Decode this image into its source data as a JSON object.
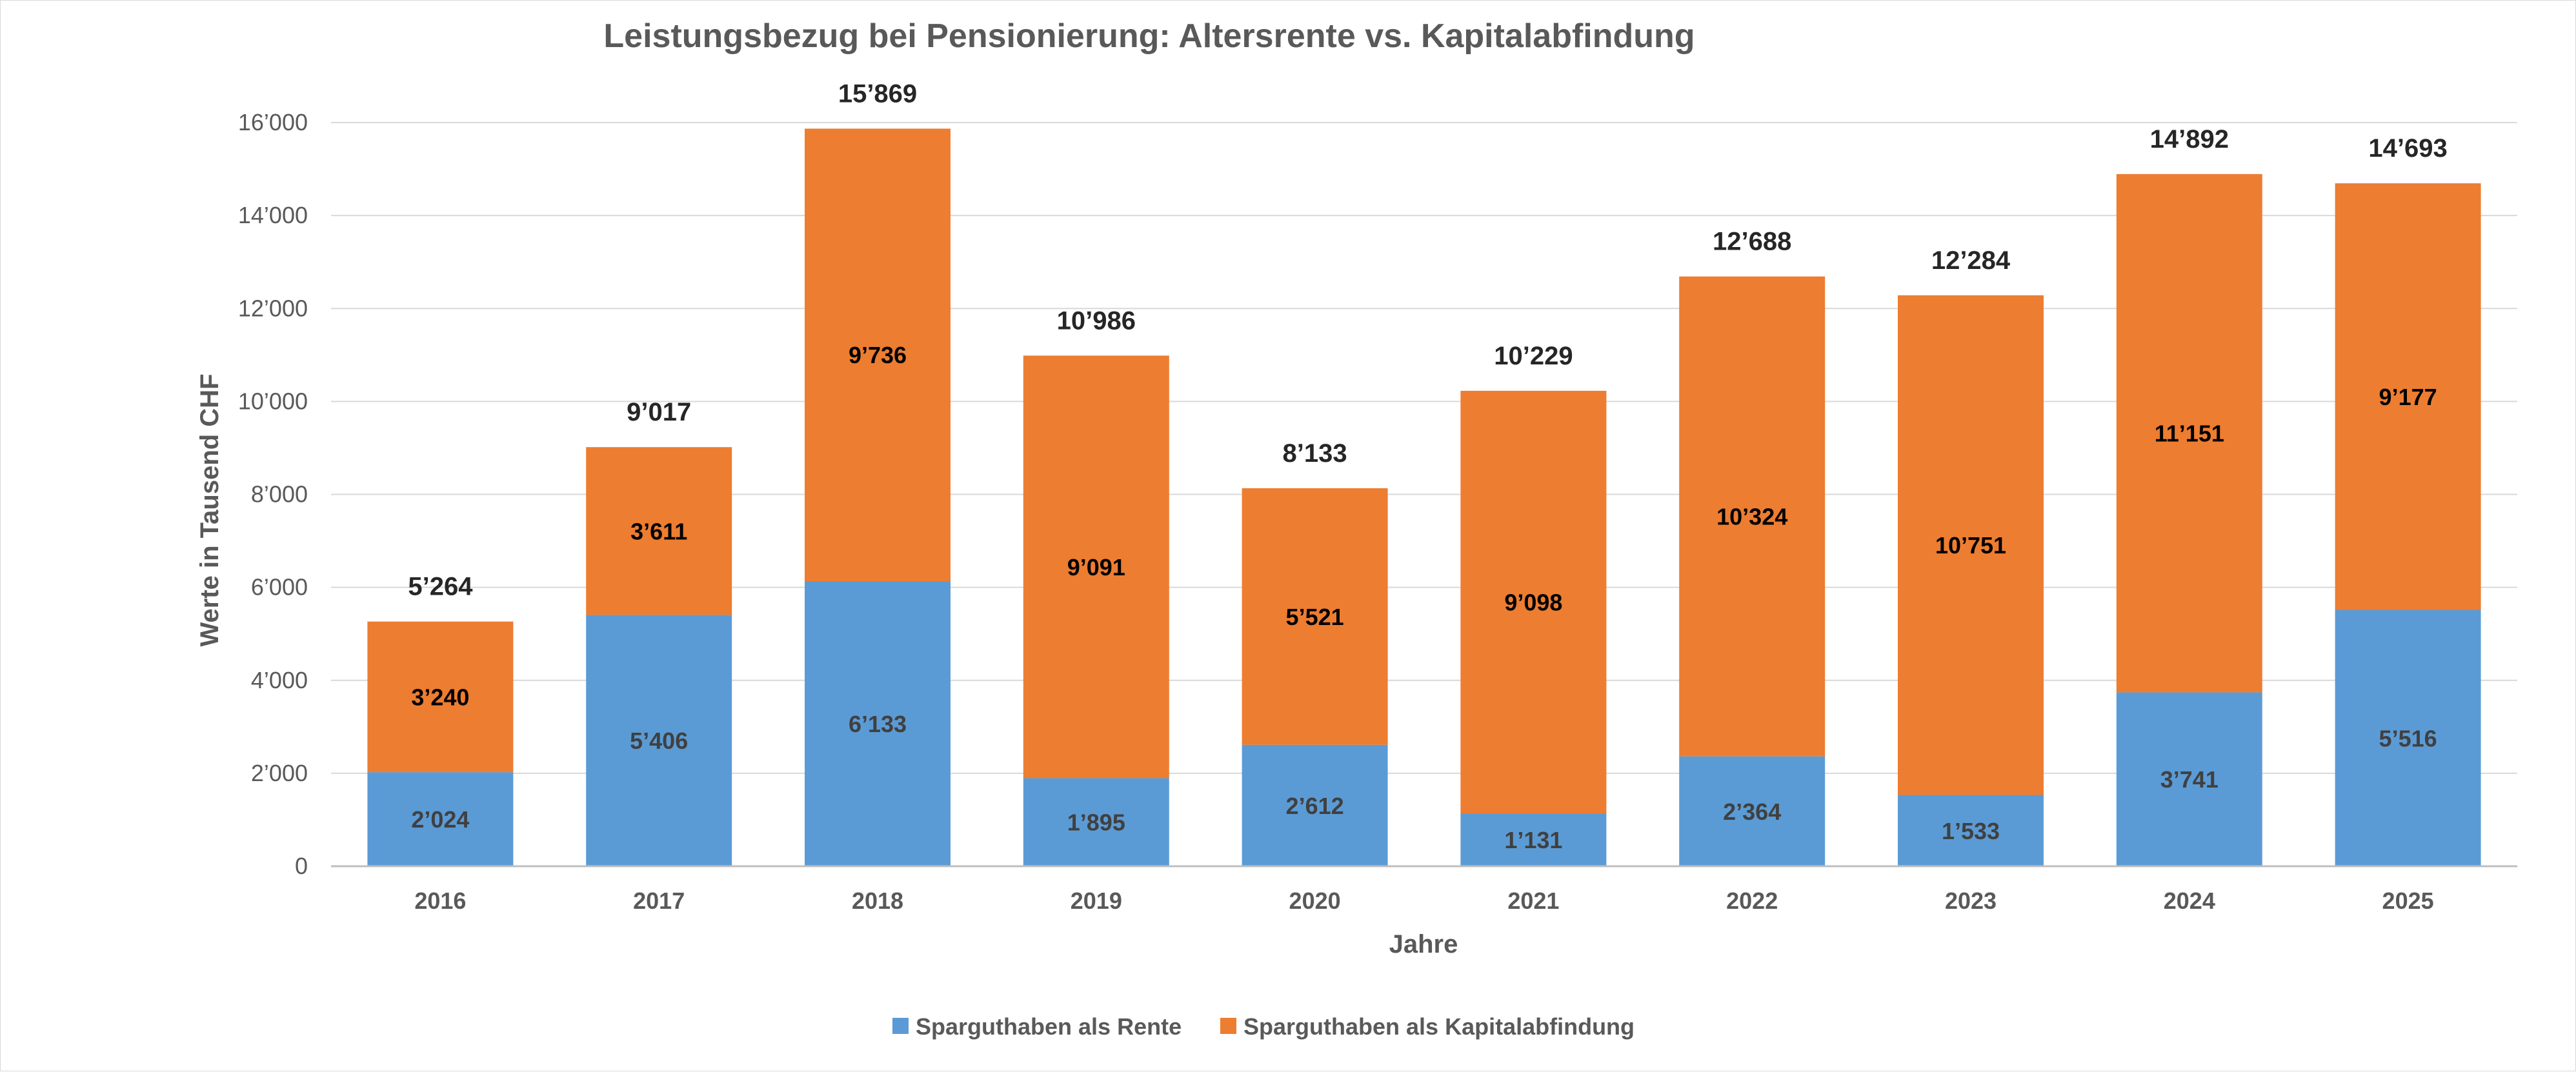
{
  "chart_data": {
    "type": "bar",
    "stacked": true,
    "title": "Leistungsbezug bei Pensionierung: Altersrente vs. Kapitalabfindung",
    "xlabel": "Jahre",
    "ylabel": "Werte in Tausend CHF",
    "ylim": [
      0,
      16000
    ],
    "yticks": [
      0,
      2000,
      4000,
      6000,
      8000,
      10000,
      12000,
      14000,
      16000
    ],
    "ytick_labels": [
      "0",
      "2’000",
      "4’000",
      "6’000",
      "8’000",
      "10’000",
      "12’000",
      "14’000",
      "16’000"
    ],
    "grid": true,
    "legend_position": "bottom",
    "categories": [
      "2016",
      "2017",
      "2018",
      "2019",
      "2020",
      "2021",
      "2022",
      "2023",
      "2024",
      "2025"
    ],
    "series": [
      {
        "name": "Sparguthaben als Rente",
        "color": "#5b9bd5",
        "values": [
          2024,
          5406,
          6133,
          1895,
          2612,
          1131,
          2364,
          1533,
          3741,
          5516
        ],
        "labels": [
          "2’024",
          "5’406",
          "6’133",
          "1’895",
          "2’612",
          "1’131",
          "2’364",
          "1’533",
          "3’741",
          "5’516"
        ]
      },
      {
        "name": "Sparguthaben als Kapitalabfindung",
        "color": "#ed7d31",
        "values": [
          3240,
          3611,
          9736,
          9091,
          5521,
          9098,
          10324,
          10751,
          11151,
          9177
        ],
        "labels": [
          "3’240",
          "3’611",
          "9’736",
          "9’091",
          "5’521",
          "9’098",
          "10’324",
          "10’751",
          "11’151",
          "9’177"
        ]
      }
    ],
    "totals": [
      5264,
      9017,
      15869,
      10986,
      8133,
      10229,
      12688,
      12284,
      14892,
      14693
    ],
    "total_labels": [
      "5’264",
      "9’017",
      "15’869",
      "10’986",
      "8’133",
      "10’229",
      "12’688",
      "12’284",
      "14’892",
      "14’693"
    ],
    "gridline_color": "#d9d9d9",
    "axis_text_color": "#595959"
  }
}
